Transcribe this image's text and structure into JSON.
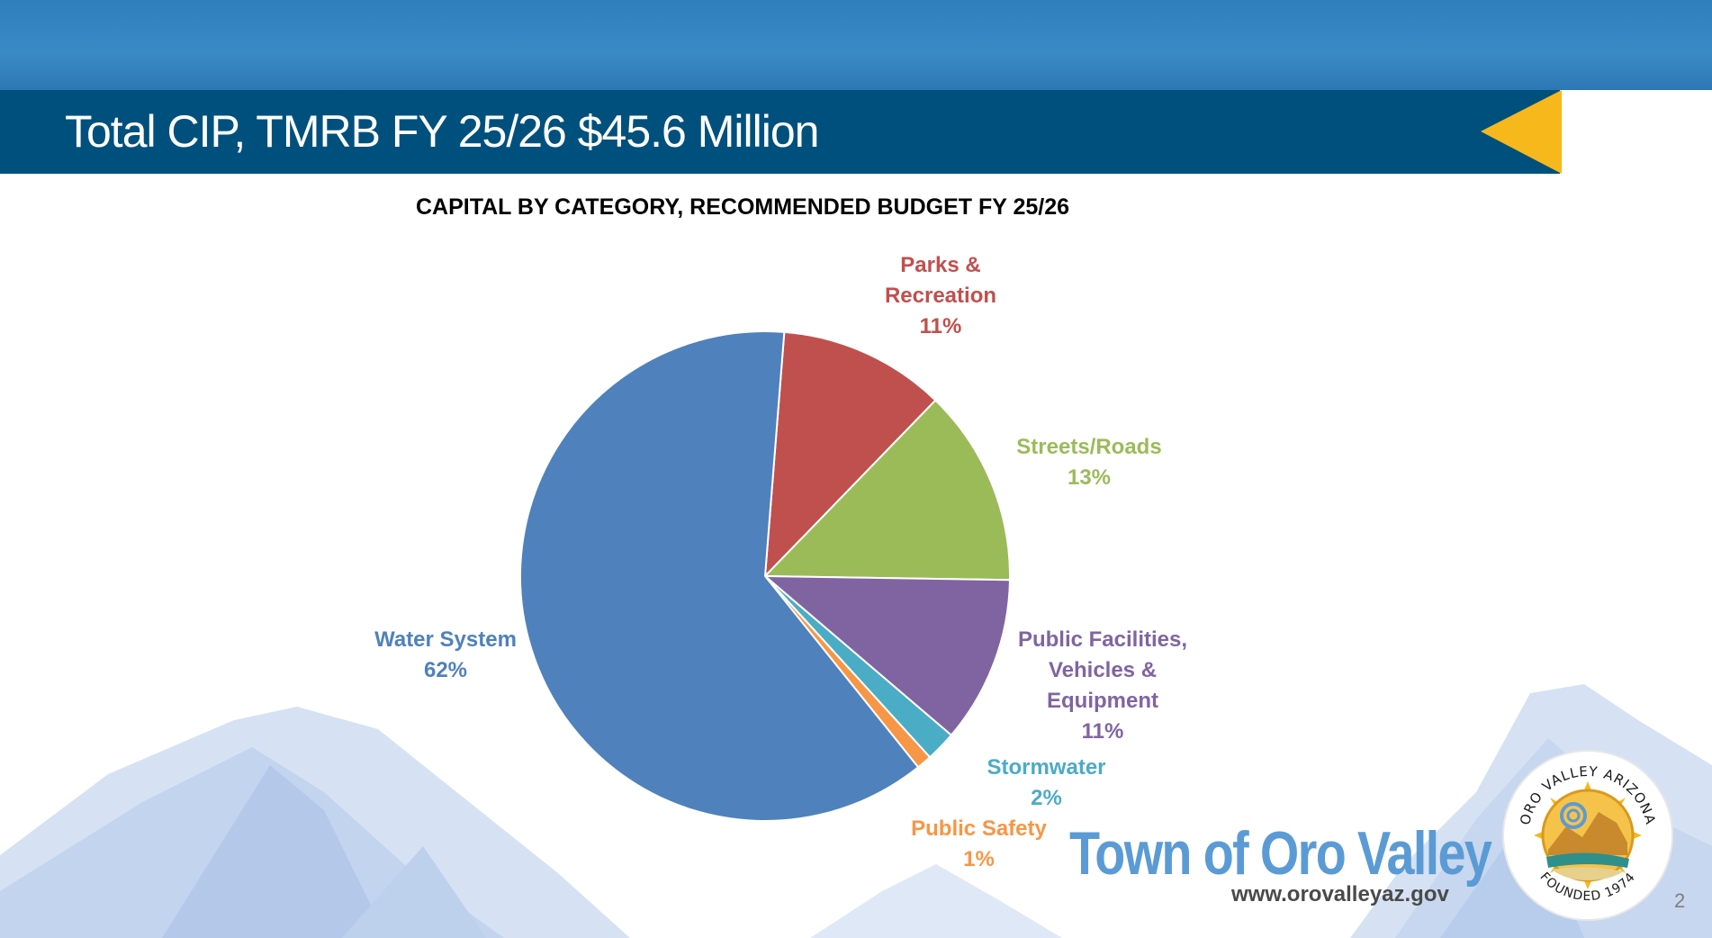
{
  "slide": {
    "title": "Total CIP, TMRB FY 25/26 $45.6 Million",
    "page_number": "2"
  },
  "chart_data": {
    "type": "pie",
    "title": "CAPITAL BY CATEGORY, RECOMMENDED BUDGET FY 25/26",
    "legend": "none",
    "slices": [
      {
        "name": "Parks & Recreation",
        "label_lines": [
          "Parks &",
          "Recreation"
        ],
        "value": 11,
        "pct_label": "11%",
        "color": "#c0504d"
      },
      {
        "name": "Streets/Roads",
        "label_lines": [
          "Streets/Roads"
        ],
        "value": 13,
        "pct_label": "13%",
        "color": "#9bbb59"
      },
      {
        "name": "Public Facilities, Vehicles & Equipment",
        "label_lines": [
          "Public Facilities,",
          "Vehicles &",
          "Equipment"
        ],
        "value": 11,
        "pct_label": "11%",
        "color": "#8064a2"
      },
      {
        "name": "Stormwater",
        "label_lines": [
          "Stormwater"
        ],
        "value": 2,
        "pct_label": "2%",
        "color": "#4bacc6"
      },
      {
        "name": "Public Safety",
        "label_lines": [
          "Public Safety"
        ],
        "value": 1,
        "pct_label": "1%",
        "color": "#f79646"
      },
      {
        "name": "Water System",
        "label_lines": [
          "Water System"
        ],
        "value": 62,
        "pct_label": "62%",
        "color": "#4f81bd"
      }
    ]
  },
  "branding": {
    "town_name": "Town of Oro Valley",
    "website": "www.orovalleyaz.gov",
    "seal_top_text": "ORO VALLEY ARIZONA",
    "seal_bottom_text": "FOUNDED 1974"
  },
  "colors": {
    "title_bar": "#00507d",
    "accent_arrow": "#f6b81b",
    "brand_blue": "#5b9bd5"
  }
}
